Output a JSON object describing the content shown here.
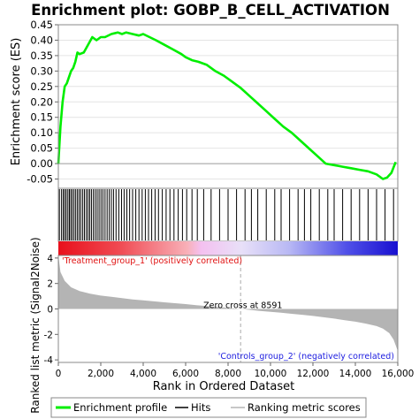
{
  "chart_data": {
    "type": "line",
    "title": "Enrichment plot: GOBP_B_CELL_ACTIVATION",
    "xlabel": "Rank in Ordered Dataset",
    "xlim": [
      0,
      16000
    ],
    "x_ticks": [
      0,
      2000,
      4000,
      6000,
      8000,
      10000,
      12000,
      14000,
      16000
    ],
    "x_tick_labels": [
      "0",
      "2,000",
      "4,000",
      "6,000",
      "8,000",
      "10,000",
      "12,000",
      "14,000",
      "16,000"
    ],
    "es_panel": {
      "ylabel": "Enrichment score (ES)",
      "ylim": [
        -0.08,
        0.45
      ],
      "y_ticks": [
        -0.05,
        0.0,
        0.05,
        0.1,
        0.15,
        0.2,
        0.25,
        0.3,
        0.35,
        0.4,
        0.45
      ],
      "y_tick_labels": [
        "-0.05",
        "0.00",
        "0.05",
        "0.10",
        "0.15",
        "0.20",
        "0.25",
        "0.30",
        "0.35",
        "0.40",
        "0.45"
      ],
      "grid": true,
      "series": [
        {
          "name": "Enrichment profile",
          "color": "#00ee00",
          "x": [
            0,
            100,
            200,
            300,
            400,
            500,
            600,
            700,
            800,
            900,
            1000,
            1200,
            1400,
            1600,
            1800,
            2000,
            2200,
            2500,
            2800,
            3000,
            3200,
            3500,
            3800,
            4000,
            4300,
            4600,
            5000,
            5400,
            5800,
            6000,
            6300,
            6600,
            7000,
            7400,
            7800,
            8200,
            8600,
            9000,
            9400,
            9800,
            10200,
            10600,
            11000,
            11400,
            11800,
            12200,
            12600,
            13000,
            13400,
            13800,
            14200,
            14600,
            15000,
            15300,
            15500,
            15700,
            15900
          ],
          "y": [
            0.0,
            0.12,
            0.2,
            0.25,
            0.26,
            0.28,
            0.3,
            0.31,
            0.33,
            0.36,
            0.355,
            0.36,
            0.385,
            0.41,
            0.4,
            0.41,
            0.41,
            0.42,
            0.425,
            0.42,
            0.425,
            0.42,
            0.415,
            0.42,
            0.41,
            0.4,
            0.385,
            0.37,
            0.355,
            0.345,
            0.335,
            0.33,
            0.32,
            0.3,
            0.285,
            0.265,
            0.245,
            0.22,
            0.195,
            0.17,
            0.145,
            0.12,
            0.1,
            0.075,
            0.05,
            0.025,
            0.0,
            -0.005,
            -0.01,
            -0.015,
            -0.02,
            -0.025,
            -0.035,
            -0.05,
            -0.045,
            -0.03,
            0.005
          ]
        }
      ]
    },
    "hits": {
      "name": "Hits",
      "color": "#000000",
      "x": [
        50,
        150,
        230,
        300,
        370,
        450,
        520,
        590,
        660,
        740,
        820,
        900,
        980,
        1060,
        1150,
        1230,
        1320,
        1400,
        1480,
        1560,
        1650,
        1740,
        1830,
        1920,
        2010,
        2100,
        2200,
        2300,
        2400,
        2500,
        2600,
        2720,
        2850,
        2980,
        3100,
        3230,
        3360,
        3500,
        3650,
        3800,
        3950,
        4100,
        4250,
        4400,
        4560,
        4720,
        4900,
        5080,
        5260,
        5450,
        5650,
        5850,
        6050,
        6300,
        6550,
        6850,
        7200,
        7600,
        8000,
        8400,
        8800,
        9100,
        9400,
        9800,
        10200,
        10500,
        10900,
        11300,
        11600,
        11900,
        12300,
        12700,
        13000,
        13400,
        13800,
        14200,
        14600,
        15000,
        15400,
        15800
      ]
    },
    "rank_panel": {
      "ylabel": "Ranked list metric (Signal2Noise)",
      "ylim": [
        -4.2,
        4.2
      ],
      "y_ticks": [
        -4,
        -2,
        0,
        2,
        4
      ],
      "y_tick_labels": [
        "-4",
        "-2",
        "0",
        "2",
        "4"
      ],
      "zero_cross": 8591,
      "zero_cross_label": "Zero cross at 8591",
      "positive_label": "'Treatment_group_1' (positively correlated)",
      "negative_label": "'Controls_group_2' (negatively correlated)",
      "series": [
        {
          "name": "Ranking metric scores",
          "color": "#b4b4b4",
          "x": [
            0,
            100,
            300,
            600,
            1000,
            1500,
            2000,
            2500,
            3000,
            3500,
            4000,
            4500,
            5000,
            5500,
            6000,
            6500,
            7000,
            7500,
            8000,
            8591,
            9000,
            9500,
            10000,
            10500,
            11000,
            11500,
            12000,
            12500,
            13000,
            13500,
            14000,
            14500,
            15000,
            15300,
            15600,
            15800,
            16000
          ],
          "y": [
            4.2,
            2.9,
            2.2,
            1.7,
            1.4,
            1.2,
            1.05,
            0.95,
            0.85,
            0.75,
            0.68,
            0.6,
            0.52,
            0.45,
            0.38,
            0.3,
            0.23,
            0.15,
            0.08,
            0.0,
            -0.07,
            -0.15,
            -0.23,
            -0.3,
            -0.38,
            -0.46,
            -0.55,
            -0.65,
            -0.76,
            -0.88,
            -1.0,
            -1.15,
            -1.35,
            -1.55,
            -1.9,
            -2.4,
            -3.3
          ]
        }
      ]
    },
    "legend": {
      "placement": "bottom",
      "entries": [
        {
          "label": "Enrichment profile",
          "color": "#00ee00"
        },
        {
          "label": "Hits",
          "color": "#000000"
        },
        {
          "label": "Ranking metric scores",
          "color": "#b4b4b4"
        }
      ]
    }
  }
}
